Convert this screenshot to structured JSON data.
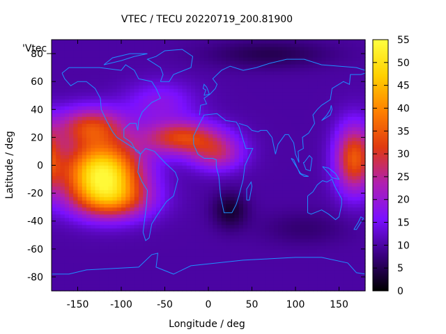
{
  "chart_data": {
    "type": "heatmap",
    "title": "VTEC / TECU 20220719_200.81900",
    "xlabel": "Longitude / deg",
    "ylabel": "Latitude / deg",
    "legend_label": "'Vtec_",
    "xlim": [
      -180,
      180
    ],
    "ylim": [
      -90,
      90
    ],
    "x_ticks": [
      -150,
      -100,
      -50,
      0,
      50,
      100,
      150
    ],
    "y_ticks": [
      -80,
      -60,
      -40,
      -20,
      0,
      20,
      40,
      60,
      80
    ],
    "x_tick_labels": [
      "-150",
      "-100",
      "-50",
      "0",
      "50",
      "100",
      "150"
    ],
    "y_tick_labels": [
      "-80",
      "-60",
      "-40",
      "-20",
      "0",
      "20",
      "40",
      "60",
      "80"
    ],
    "colorbar": {
      "range": [
        0,
        55
      ],
      "ticks": [
        0,
        5,
        10,
        15,
        20,
        25,
        30,
        35,
        40,
        45,
        50,
        55
      ],
      "tick_labels": [
        "0",
        "5",
        "10",
        "15",
        "20",
        "25",
        "30",
        "35",
        "40",
        "45",
        "50",
        "55"
      ],
      "palette": [
        "#000000",
        "#3a0080",
        "#7a10ff",
        "#b020b0",
        "#e03a10",
        "#ff8000",
        "#ffd000",
        "#ffff40"
      ]
    },
    "coastline_color": "#1e90ff",
    "grid": false,
    "peaks": [
      {
        "lon": -120,
        "lat": -5,
        "value": 52
      },
      {
        "lon": 165,
        "lat": 0,
        "value": 38
      }
    ],
    "lows": [
      {
        "lon": 25,
        "lat": -30,
        "value": 5
      },
      {
        "lon": 60,
        "lat": 80,
        "value": 5
      }
    ]
  }
}
